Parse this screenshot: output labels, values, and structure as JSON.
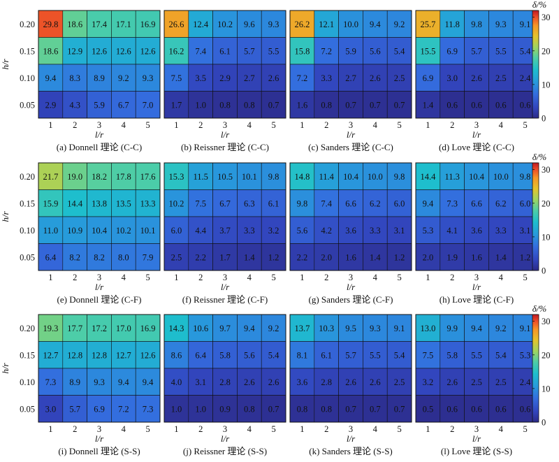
{
  "chart_data": {
    "type": "heatmap",
    "x_categories": [
      "1",
      "2",
      "3",
      "4",
      "5"
    ],
    "y_categories": [
      "0.20",
      "0.15",
      "0.10",
      "0.05"
    ],
    "xlabel": "l/r",
    "ylabel": "h/r",
    "colorbar": {
      "label": "δ/%",
      "range": [
        0,
        32
      ],
      "ticks": [
        "0",
        "10",
        "20",
        "30"
      ]
    },
    "panels": [
      {
        "caption": "(a) Donnell 理论 (C-C)",
        "values": [
          [
            29.8,
            18.6,
            17.4,
            17.1,
            16.9
          ],
          [
            18.6,
            12.9,
            12.6,
            12.6,
            12.6
          ],
          [
            9.4,
            8.3,
            8.9,
            9.2,
            9.3
          ],
          [
            2.9,
            4.3,
            5.9,
            6.7,
            7.0
          ]
        ]
      },
      {
        "caption": "(b) Reissner 理论 (C-C)",
        "values": [
          [
            26.6,
            12.4,
            10.2,
            9.6,
            9.3
          ],
          [
            16.2,
            7.4,
            6.1,
            5.7,
            5.5
          ],
          [
            7.5,
            3.5,
            2.9,
            2.7,
            2.6
          ],
          [
            1.7,
            1.0,
            0.8,
            0.8,
            0.7
          ]
        ]
      },
      {
        "caption": "(c) Sanders 理论 (C-C)",
        "values": [
          [
            26.2,
            12.1,
            10.0,
            9.4,
            9.2
          ],
          [
            15.8,
            7.2,
            5.9,
            5.6,
            5.4
          ],
          [
            7.2,
            3.3,
            2.7,
            2.6,
            2.5
          ],
          [
            1.6,
            0.8,
            0.7,
            0.7,
            0.7
          ]
        ]
      },
      {
        "caption": "(d) Love 理论 (C-C)",
        "values": [
          [
            25.7,
            11.8,
            9.8,
            9.3,
            9.1
          ],
          [
            15.5,
            6.9,
            5.7,
            5.5,
            5.4
          ],
          [
            6.9,
            3.0,
            2.6,
            2.5,
            2.4
          ],
          [
            1.4,
            0.6,
            0.6,
            0.6,
            0.6
          ]
        ]
      },
      {
        "caption": "(e) Donnell 理论 (C-F)",
        "values": [
          [
            21.7,
            19.0,
            18.2,
            17.8,
            17.6
          ],
          [
            15.9,
            14.4,
            13.8,
            13.5,
            13.3
          ],
          [
            11.0,
            10.9,
            10.4,
            10.2,
            10.1
          ],
          [
            6.4,
            8.2,
            8.2,
            8.0,
            7.9
          ]
        ]
      },
      {
        "caption": "(f) Reissner 理论 (C-F)",
        "values": [
          [
            15.3,
            11.5,
            10.5,
            10.1,
            9.8
          ],
          [
            10.2,
            7.5,
            6.7,
            6.3,
            6.1
          ],
          [
            6.0,
            4.4,
            3.7,
            3.3,
            3.2
          ],
          [
            2.5,
            2.2,
            1.7,
            1.4,
            1.2
          ]
        ]
      },
      {
        "caption": "(g) Sanders 理论 (C-F)",
        "values": [
          [
            14.8,
            11.4,
            10.4,
            10.0,
            9.8
          ],
          [
            9.8,
            7.4,
            6.6,
            6.2,
            6.0
          ],
          [
            5.6,
            4.2,
            3.6,
            3.3,
            3.1
          ],
          [
            2.2,
            2.0,
            1.6,
            1.4,
            1.2
          ]
        ]
      },
      {
        "caption": "(h) Love 理论 (C-F)",
        "values": [
          [
            14.4,
            11.3,
            10.4,
            10.0,
            9.8
          ],
          [
            9.4,
            7.3,
            6.6,
            6.2,
            6.0
          ],
          [
            5.3,
            4.1,
            3.6,
            3.3,
            3.1
          ],
          [
            2.0,
            1.9,
            1.6,
            1.4,
            1.2
          ]
        ]
      },
      {
        "caption": "(i) Donnell 理论 (S-S)",
        "values": [
          [
            19.3,
            17.7,
            17.2,
            17.0,
            16.9
          ],
          [
            12.7,
            12.8,
            12.8,
            12.7,
            12.6
          ],
          [
            7.3,
            8.9,
            9.3,
            9.4,
            9.4
          ],
          [
            3.0,
            5.7,
            6.9,
            7.2,
            7.3
          ]
        ]
      },
      {
        "caption": "(j) Reissner 理论 (S-S)",
        "values": [
          [
            14.3,
            10.6,
            9.7,
            9.4,
            9.2
          ],
          [
            8.6,
            6.4,
            5.8,
            5.6,
            5.4
          ],
          [
            4.0,
            3.1,
            2.8,
            2.6,
            2.6
          ],
          [
            1.0,
            1.0,
            0.9,
            0.8,
            0.7
          ]
        ]
      },
      {
        "caption": "(k) Sanders 理论 (S-S)",
        "values": [
          [
            13.7,
            10.3,
            9.5,
            9.3,
            9.1
          ],
          [
            8.1,
            6.1,
            5.7,
            5.5,
            5.4
          ],
          [
            3.6,
            2.8,
            2.6,
            2.6,
            2.5
          ],
          [
            0.8,
            0.8,
            0.7,
            0.7,
            0.7
          ]
        ]
      },
      {
        "caption": "(l) Love 理论 (S-S)",
        "values": [
          [
            13.0,
            9.9,
            9.4,
            9.2,
            9.1
          ],
          [
            7.5,
            5.8,
            5.5,
            5.4,
            5.3
          ],
          [
            3.2,
            2.6,
            2.5,
            2.5,
            2.4
          ],
          [
            0.5,
            0.6,
            0.6,
            0.6,
            0.6
          ]
        ]
      }
    ]
  }
}
